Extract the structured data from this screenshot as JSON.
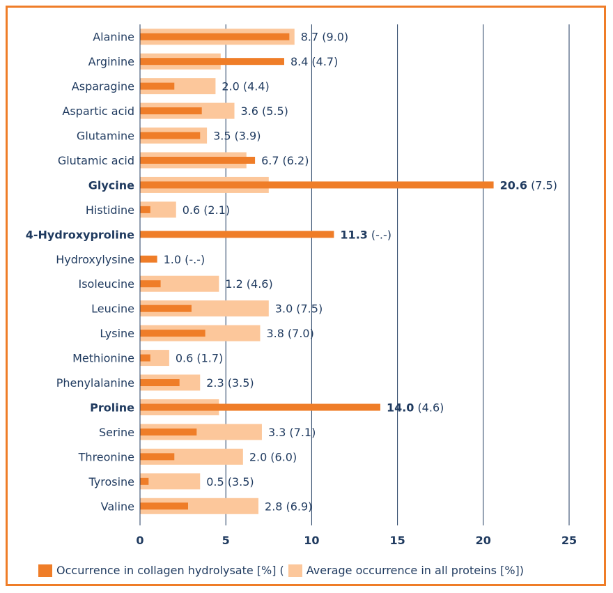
{
  "chart_data": {
    "type": "bar",
    "orientation": "horizontal",
    "categories": [
      "Alanine",
      "Arginine",
      "Asparagine",
      "Aspartic acid",
      "Glutamine",
      "Glutamic acid",
      "Glycine",
      "Histidine",
      "4-Hydroxyproline",
      "Hydroxylysine",
      "Isoleucine",
      "Leucine",
      "Lysine",
      "Methionine",
      "Phenylalanine",
      "Proline",
      "Serine",
      "Threonine",
      "Tyrosine",
      "Valine"
    ],
    "bold_categories": [
      "Glycine",
      "4-Hydroxyproline",
      "Proline"
    ],
    "series": [
      {
        "name": "Occurrence in collagen hydrolysate [%]",
        "color": "#ef7d28",
        "values": [
          8.7,
          8.4,
          2.0,
          3.6,
          3.5,
          6.7,
          20.6,
          0.6,
          11.3,
          1.0,
          1.2,
          3.0,
          3.8,
          0.6,
          2.3,
          14.0,
          3.3,
          2.0,
          0.5,
          2.8
        ]
      },
      {
        "name": "Average occurrence in all proteins [%]",
        "color": "#fcc79b",
        "values": [
          9.0,
          4.7,
          4.4,
          5.5,
          3.9,
          6.2,
          7.5,
          2.1,
          null,
          null,
          4.6,
          7.5,
          7.0,
          1.7,
          3.5,
          4.6,
          7.1,
          6.0,
          3.5,
          6.9
        ]
      }
    ],
    "value_labels": [
      {
        "main": "8.7",
        "paren": "(9.0)"
      },
      {
        "main": "8.4",
        "paren": "(4.7)"
      },
      {
        "main": "2.0",
        "paren": "(4.4)"
      },
      {
        "main": "3.6",
        "paren": "(5.5)"
      },
      {
        "main": "3.5",
        "paren": "(3.9)"
      },
      {
        "main": "6.7",
        "paren": "(6.2)"
      },
      {
        "main": "20.6",
        "paren": "(7.5)"
      },
      {
        "main": "0.6",
        "paren": "(2.1)"
      },
      {
        "main": "11.3",
        "paren": "(-.-)"
      },
      {
        "main": "1.0",
        "paren": "(-.-)"
      },
      {
        "main": "1.2",
        "paren": "(4.6)"
      },
      {
        "main": "3.0",
        "paren": "(7.5)"
      },
      {
        "main": "3.8",
        "paren": "(7.0)"
      },
      {
        "main": "0.6",
        "paren": "(1.7)"
      },
      {
        "main": "2.3",
        "paren": "(3.5)"
      },
      {
        "main": "14.0",
        "paren": "(4.6)"
      },
      {
        "main": "3.3",
        "paren": "(7.1)"
      },
      {
        "main": "2.0",
        "paren": "(6.0)"
      },
      {
        "main": "0.5",
        "paren": "(3.5)"
      },
      {
        "main": "2.8",
        "paren": "(6.9)"
      }
    ],
    "xlim": [
      0,
      25
    ],
    "xticks": [
      "0",
      "5",
      "10",
      "15",
      "20",
      "25"
    ],
    "gridline_color": "#1f3a5f",
    "grid": true
  },
  "legend": {
    "collagen_label": "Occurrence in collagen hydrolysate [%] (",
    "average_label": "Average occurrence in all proteins [%])"
  }
}
